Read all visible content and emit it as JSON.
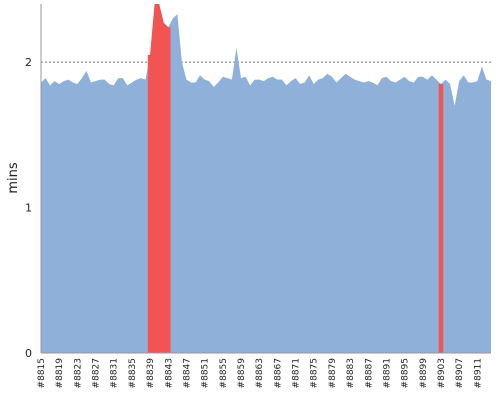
{
  "chart_data": {
    "type": "area",
    "ylabel": "mins",
    "xlabel": "",
    "ylim": [
      0,
      2.4
    ],
    "y_ticks": [
      0,
      1,
      2
    ],
    "grid": "horizontal dashed at 1 and 2",
    "x_tick_labels": [
      "#8815",
      "#8819",
      "#8823",
      "#8827",
      "#8831",
      "#8835",
      "#8839",
      "#8843",
      "#8847",
      "#8851",
      "#8855",
      "#8859",
      "#8863",
      "#8867",
      "#8871",
      "#8875",
      "#8879",
      "#8883",
      "#8887",
      "#8891",
      "#8895",
      "#8899",
      "#8903",
      "#8907",
      "#8911"
    ],
    "x_start": 8815,
    "x_end": 8914,
    "values": [
      1.86,
      1.89,
      1.84,
      1.87,
      1.85,
      1.87,
      1.88,
      1.86,
      1.85,
      1.89,
      1.94,
      1.86,
      1.87,
      1.88,
      1.88,
      1.85,
      1.84,
      1.89,
      1.89,
      1.84,
      1.86,
      1.88,
      1.89,
      1.88,
      2.05,
      2.6,
      2.6,
      2.27,
      2.24,
      2.3,
      2.33,
      2.0,
      1.88,
      1.86,
      1.86,
      1.91,
      1.88,
      1.87,
      1.83,
      1.86,
      1.9,
      1.89,
      1.88,
      2.1,
      1.89,
      1.9,
      1.84,
      1.88,
      1.88,
      1.87,
      1.89,
      1.9,
      1.88,
      1.88,
      1.84,
      1.87,
      1.89,
      1.85,
      1.86,
      1.91,
      1.85,
      1.88,
      1.89,
      1.92,
      1.9,
      1.86,
      1.89,
      1.92,
      1.9,
      1.88,
      1.87,
      1.86,
      1.87,
      1.86,
      1.84,
      1.89,
      1.9,
      1.87,
      1.86,
      1.88,
      1.9,
      1.87,
      1.86,
      1.9,
      1.9,
      1.88,
      1.91,
      1.88,
      1.85,
      1.88,
      1.85,
      1.7,
      1.87,
      1.91,
      1.86,
      1.86,
      1.87,
      1.97,
      1.88,
      1.87
    ],
    "highlight_ranges": [
      [
        8839,
        8843
      ],
      [
        8903,
        8903
      ]
    ],
    "colors": {
      "normal": "#8fb0d8",
      "highlight": "#f25454",
      "grid": "#777777"
    }
  }
}
